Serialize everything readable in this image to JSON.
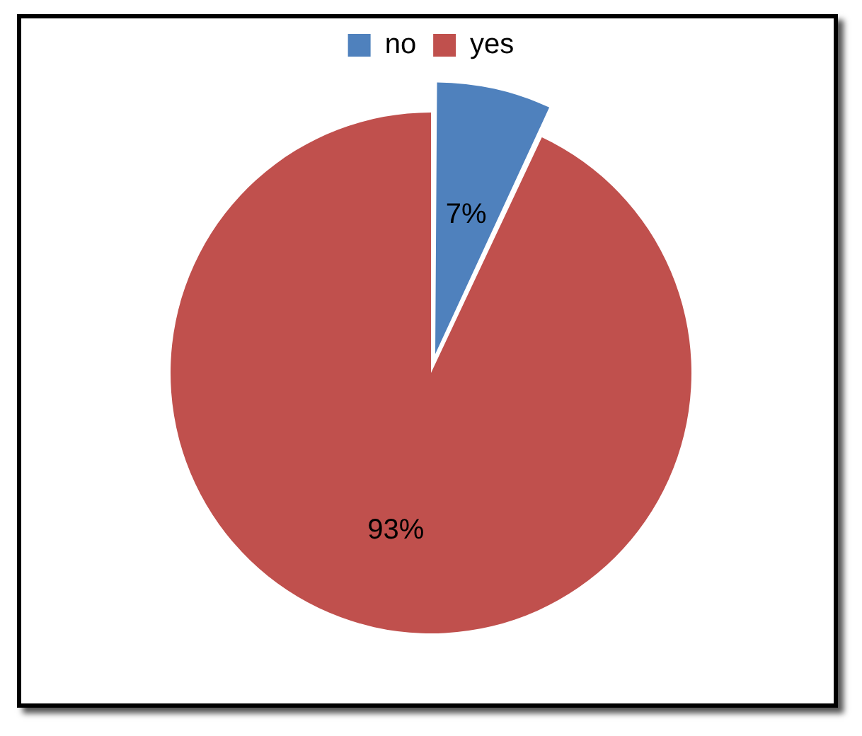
{
  "chart_data": {
    "type": "pie",
    "categories": [
      "no",
      "yes"
    ],
    "values": [
      7,
      93
    ],
    "colors": [
      "#4f81bd",
      "#c0504d"
    ],
    "value_labels": [
      "7%",
      "93%"
    ],
    "legend": "top"
  }
}
